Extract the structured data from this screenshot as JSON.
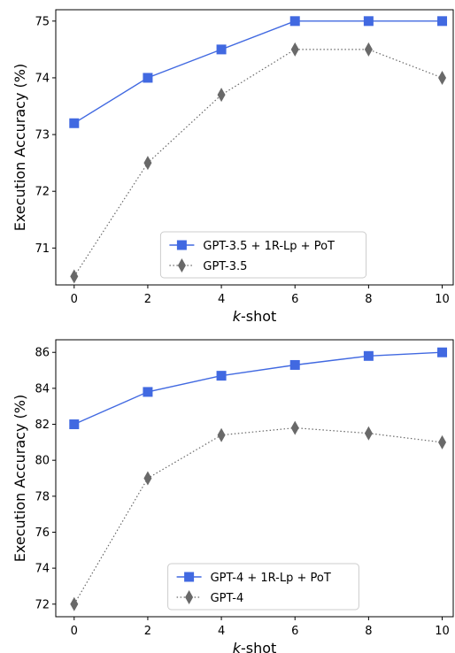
{
  "chart_data": [
    {
      "type": "line",
      "xlabel_italic": "k",
      "xlabel_rest": "-shot",
      "ylabel": "Execution Accuracy (%)",
      "x": [
        0,
        2,
        4,
        6,
        8,
        10
      ],
      "xlim": [
        -0.5,
        10.3
      ],
      "ylim": [
        70.35,
        75.2
      ],
      "xticks": [
        0,
        2,
        4,
        6,
        8,
        10
      ],
      "yticks": [
        71,
        72,
        73,
        74,
        75
      ],
      "legend_position": "lower-center",
      "grid": false,
      "series": [
        {
          "name": "GPT-3.5 + 1R-Lp + PoT",
          "values": [
            73.2,
            74.0,
            74.5,
            75.0,
            75.0,
            75.0
          ],
          "color": "#4169e1",
          "marker": "square",
          "linestyle": "solid"
        },
        {
          "name": "GPT-3.5",
          "values": [
            70.5,
            72.5,
            73.7,
            74.5,
            74.5,
            74.0
          ],
          "color": "#696969",
          "marker": "diamond",
          "linestyle": "dotted"
        }
      ]
    },
    {
      "type": "line",
      "xlabel_italic": "k",
      "xlabel_rest": "-shot",
      "ylabel": "Execution Accuracy (%)",
      "x": [
        0,
        2,
        4,
        6,
        8,
        10
      ],
      "xlim": [
        -0.5,
        10.3
      ],
      "ylim": [
        71.3,
        86.7
      ],
      "xticks": [
        0,
        2,
        4,
        6,
        8,
        10
      ],
      "yticks": [
        72,
        74,
        76,
        78,
        80,
        82,
        84,
        86
      ],
      "legend_position": "lower-center",
      "grid": false,
      "series": [
        {
          "name": "GPT-4 + 1R-Lp + PoT",
          "values": [
            82.0,
            83.8,
            84.7,
            85.3,
            85.8,
            86.0
          ],
          "color": "#4169e1",
          "marker": "square",
          "linestyle": "solid"
        },
        {
          "name": "GPT-4",
          "values": [
            72.0,
            79.0,
            81.4,
            81.8,
            81.5,
            81.0
          ],
          "color": "#696969",
          "marker": "diamond",
          "linestyle": "dotted"
        }
      ]
    }
  ]
}
